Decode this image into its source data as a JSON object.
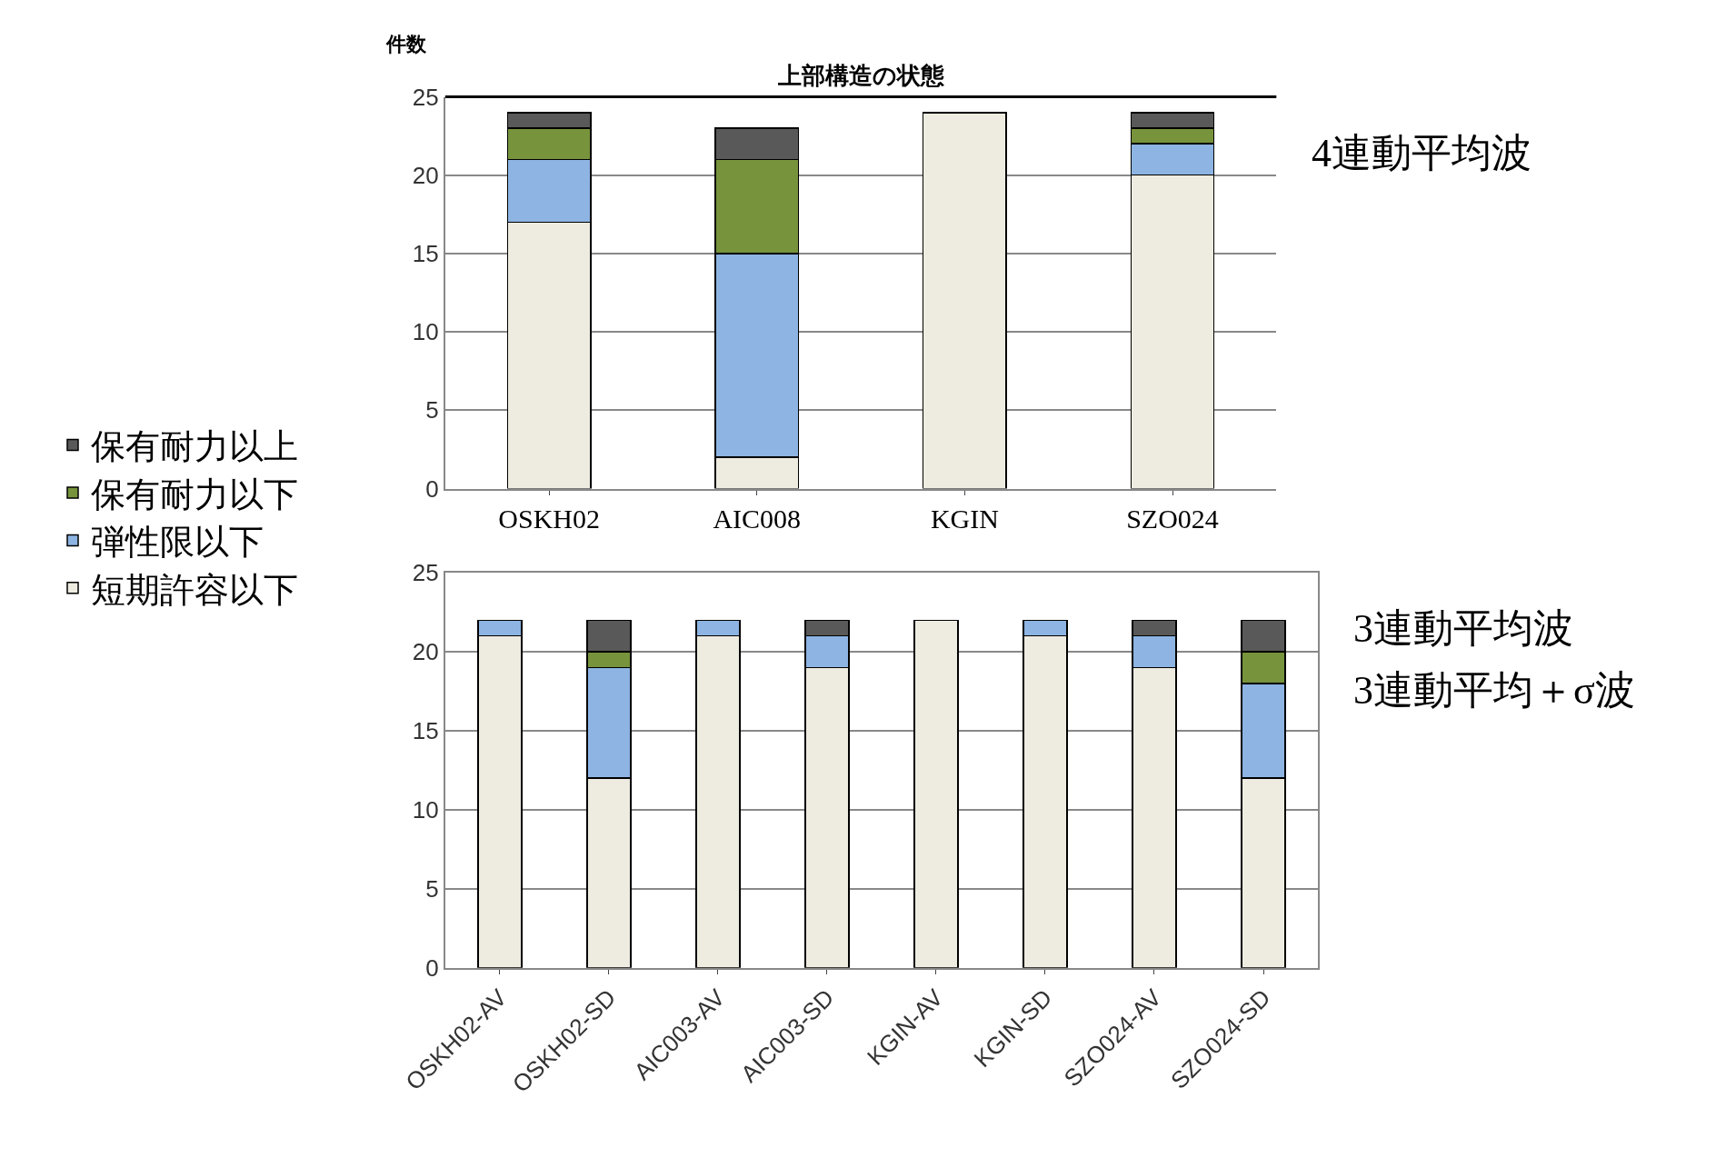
{
  "chart_data": [
    {
      "type": "bar",
      "stacked": true,
      "title": "上部構造の状態",
      "ylabel": "件数",
      "categories": [
        "OSKH02",
        "AIC008",
        "KGIN",
        "SZO024"
      ],
      "ylim": [
        0,
        25
      ],
      "yticks": [
        0,
        5,
        10,
        15,
        20,
        25
      ],
      "grid": "y",
      "legend": "left",
      "series": [
        {
          "name": "短期許容以下",
          "color": "#eeebe0",
          "values": [
            17,
            2,
            24,
            20
          ]
        },
        {
          "name": "弾性限以下",
          "color": "#8db4e2",
          "values": [
            4,
            13,
            0,
            2
          ]
        },
        {
          "name": "保有耐力以下",
          "color": "#77933c",
          "values": [
            2,
            6,
            0,
            1
          ]
        },
        {
          "name": "保有耐力以上",
          "color": "#595959",
          "values": [
            1,
            2,
            0,
            1
          ]
        }
      ],
      "annotations": [
        "4連動平均波"
      ]
    },
    {
      "type": "bar",
      "stacked": true,
      "categories": [
        "OSKH02-AV",
        "OSKH02-SD",
        "AIC003-AV",
        "AIC003-SD",
        "KGIN-AV",
        "KGIN-SD",
        "SZO024-AV",
        "SZO024-SD"
      ],
      "ylim": [
        0,
        25
      ],
      "yticks": [
        0,
        5,
        10,
        15,
        20,
        25
      ],
      "grid": "y",
      "series": [
        {
          "color": "#eeebe0",
          "values": [
            21,
            12,
            21,
            19,
            22,
            21,
            19,
            12
          ]
        },
        {
          "color": "#8db4e2",
          "values": [
            1,
            7,
            1,
            2,
            0,
            1,
            2,
            6
          ]
        },
        {
          "color": "#77933c",
          "values": [
            0,
            1,
            0,
            0,
            0,
            0,
            0,
            2
          ]
        },
        {
          "color": "#595959",
          "values": [
            0,
            2,
            0,
            1,
            0,
            0,
            1,
            2
          ]
        }
      ],
      "annotations": [
        "3連動平均波",
        "3連動平均＋σ波"
      ]
    }
  ]
}
